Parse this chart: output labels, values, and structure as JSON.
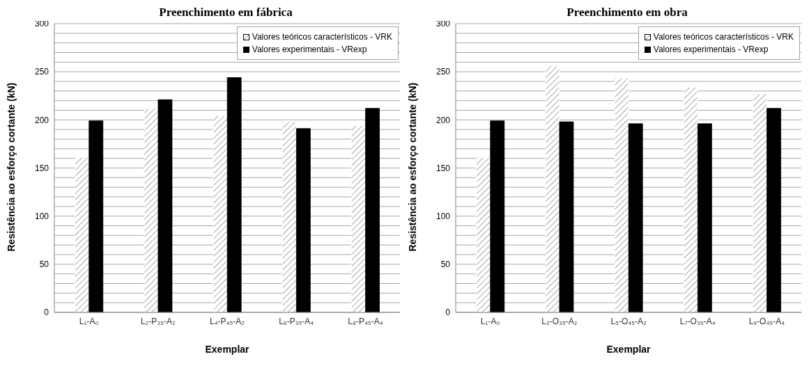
{
  "chart_data": [
    {
      "type": "bar",
      "title": "Preenchimento em fábrica",
      "xlabel": "Exemplar",
      "ylabel": "Resistência ao esforço cortante (kN)",
      "categories": [
        "L₁-A₀",
        "L₂-P₃₅-A₂",
        "L₄-P₄₅-A₂",
        "L₆-P₃₅-A₄",
        "L₈-P₄₅-A₄"
      ],
      "series": [
        {
          "name": "Valores teóricos característicos - VRK",
          "color": "#ffffff",
          "values": [
            161,
            212,
            204,
            198,
            194
          ]
        },
        {
          "name": "Valores experimentais - VRexp",
          "color": "#000000",
          "values": [
            199,
            221,
            244,
            191,
            212
          ]
        }
      ],
      "ylim": [
        0,
        300
      ],
      "yticks": [
        0,
        {
          "value": 10,
          "label": null
        },
        {
          "value": 20,
          "label": null
        },
        {
          "value": 30,
          "label": null
        },
        {
          "value": 40,
          "label": null
        },
        50,
        {
          "value": 60,
          "label": null
        },
        {
          "value": 70,
          "label": null
        },
        {
          "value": 80,
          "label": null
        },
        {
          "value": 90,
          "label": null
        },
        100,
        {
          "value": 110,
          "label": null
        },
        {
          "value": 120,
          "label": null
        },
        {
          "value": 130,
          "label": null
        },
        {
          "value": 140,
          "label": null
        },
        150,
        {
          "value": 160,
          "label": null
        },
        {
          "value": 170,
          "label": null
        },
        {
          "value": 180,
          "label": null
        },
        {
          "value": 190,
          "label": null
        },
        200,
        {
          "value": 210,
          "label": null
        },
        {
          "value": 220,
          "label": null
        },
        {
          "value": 230,
          "label": null
        },
        {
          "value": 240,
          "label": null
        },
        250,
        {
          "value": 260,
          "label": null
        },
        {
          "value": 270,
          "label": null
        },
        {
          "value": 280,
          "label": null
        },
        {
          "value": 290,
          "label": null
        },
        300
      ],
      "grid": "y",
      "legend": "top right"
    },
    {
      "type": "bar",
      "title": "Preenchimento em obra",
      "xlabel": "Exemplar",
      "ylabel": "Resistência ao esforço cortante (kN)",
      "categories": [
        "L₁-A₀",
        "L₃-O₃₅-A₂",
        "L₅-O₄₅-A₂",
        "L₇-O₃₅-A₄",
        "L₉-O₄₅-A₄"
      ],
      "series": [
        {
          "name": "Valores teóricos característicos - VRK",
          "color": "#ffffff",
          "values": [
            161,
            256,
            243,
            234,
            227
          ]
        },
        {
          "name": "Valores experimentais - VRexp",
          "color": "#000000",
          "values": [
            199,
            198,
            196,
            196,
            212
          ]
        }
      ],
      "ylim": [
        0,
        300
      ],
      "yticks": [
        0,
        {
          "value": 10,
          "label": null
        },
        {
          "value": 20,
          "label": null
        },
        {
          "value": 30,
          "label": null
        },
        {
          "value": 40,
          "label": null
        },
        50,
        {
          "value": 60,
          "label": null
        },
        {
          "value": 70,
          "label": null
        },
        {
          "value": 80,
          "label": null
        },
        {
          "value": 90,
          "label": null
        },
        100,
        {
          "value": 110,
          "label": null
        },
        {
          "value": 120,
          "label": null
        },
        {
          "value": 130,
          "label": null
        },
        {
          "value": 140,
          "label": null
        },
        150,
        {
          "value": 160,
          "label": null
        },
        {
          "value": 170,
          "label": null
        },
        {
          "value": 180,
          "label": null
        },
        {
          "value": 190,
          "label": null
        },
        200,
        {
          "value": 210,
          "label": null
        },
        {
          "value": 220,
          "label": null
        },
        {
          "value": 230,
          "label": null
        },
        {
          "value": 240,
          "label": null
        },
        250,
        {
          "value": 260,
          "label": null
        },
        {
          "value": 270,
          "label": null
        },
        {
          "value": 280,
          "label": null
        },
        {
          "value": 290,
          "label": null
        },
        300
      ],
      "grid": "y",
      "legend": "top right"
    }
  ]
}
